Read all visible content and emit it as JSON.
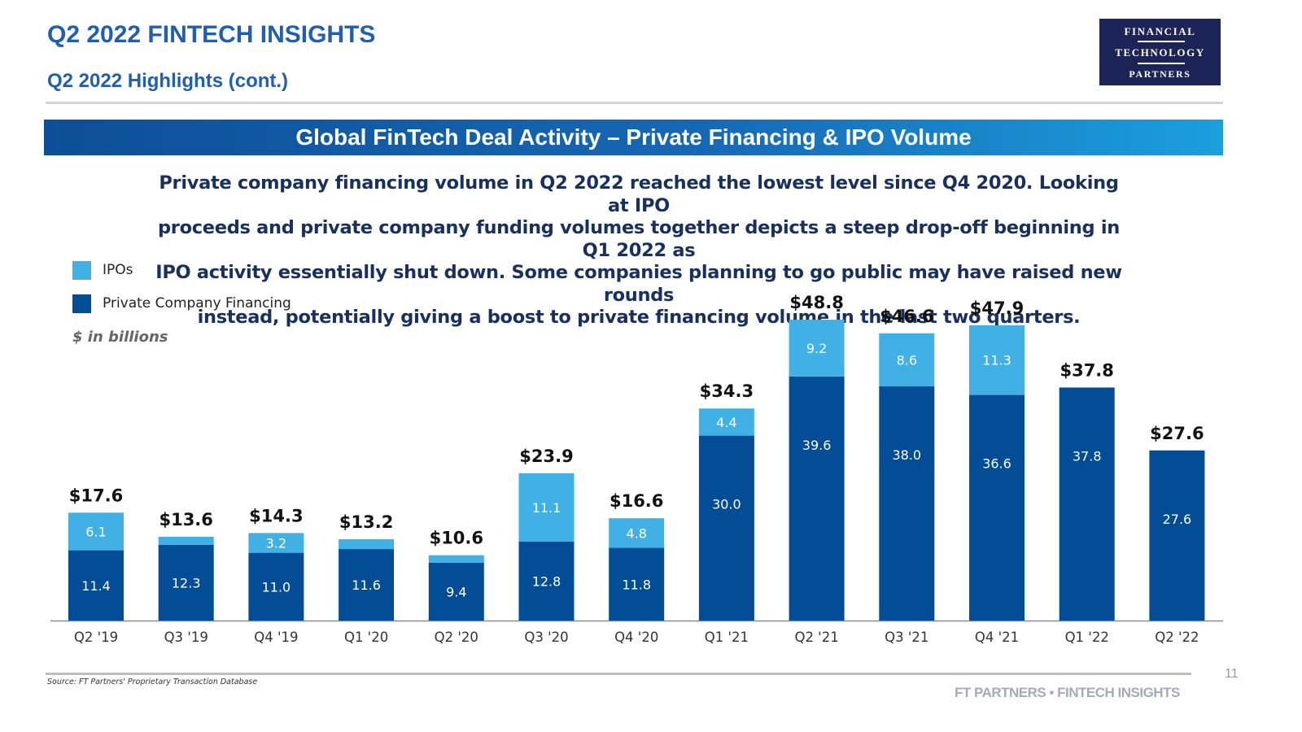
{
  "header": {
    "title": "Q2 2022 FINTECH INSIGHTS",
    "subtitle": "Q2 2022 Highlights (cont.)"
  },
  "logo": {
    "line1": "FINANCIAL",
    "line2": "TECHNOLOGY",
    "line3": "PARTNERS",
    "bg_color": "#1c2356"
  },
  "banner": {
    "text": "Global FinTech Deal Activity – Private Financing & IPO Volume"
  },
  "description": {
    "lines": [
      "Private company financing volume in Q2 2022 reached the lowest level since Q4 2020. Looking at IPO",
      "proceeds and private company funding volumes together depicts a steep drop-off beginning in Q1 2022 as",
      "IPO activity essentially shut down. Some companies planning to go public may have raised new rounds",
      "instead, potentially giving a boost to private financing volume in the last two quarters."
    ]
  },
  "units_note": "$ in billions",
  "chart_data": {
    "type": "bar",
    "stacked": true,
    "title": "Global FinTech Deal Activity – Private Financing & IPO Volume",
    "xlabel": "",
    "ylabel": "$ in billions",
    "ylim": [
      0,
      50
    ],
    "grid": false,
    "legend_position": "top-left",
    "categories": [
      "Q2 '19",
      "Q3 '19",
      "Q4 '19",
      "Q1 '20",
      "Q2 '20",
      "Q3 '20",
      "Q4 '20",
      "Q1 '21",
      "Q2 '21",
      "Q3 '21",
      "Q4 '21",
      "Q1 '22",
      "Q2 '22"
    ],
    "series": [
      {
        "name": "Private Company Financing",
        "color": "#034c96",
        "values": [
          11.4,
          12.3,
          11.0,
          11.6,
          9.4,
          12.8,
          11.8,
          30.0,
          39.6,
          38.0,
          36.6,
          37.8,
          27.6
        ],
        "labels": [
          "11.4",
          "12.3",
          "11.0",
          "11.6",
          "9.4",
          "12.8",
          "11.8",
          "30.0",
          "39.6",
          "38.0",
          "36.6",
          "37.8",
          "27.6"
        ]
      },
      {
        "name": "IPOs",
        "color": "#41b1e5",
        "values": [
          6.1,
          1.3,
          3.2,
          1.6,
          1.2,
          11.1,
          4.8,
          4.4,
          9.2,
          8.6,
          11.3,
          0.0,
          0.0
        ],
        "labels": [
          "6.1",
          "",
          "3.2",
          "",
          "",
          "11.1",
          "4.8",
          "4.4",
          "9.2",
          "8.6",
          "11.3",
          "",
          ""
        ]
      }
    ],
    "totals": [
      "$17.6",
      "$13.6",
      "$14.3",
      "$13.2",
      "$10.6",
      "$23.9",
      "$16.6",
      "$34.3",
      "$48.8",
      "$46.6",
      "$47.9",
      "$37.8",
      "$27.6"
    ],
    "legend": [
      {
        "name": "IPOs",
        "color": "#41b1e5"
      },
      {
        "name": "Private Company Financing",
        "color": "#034c96"
      }
    ]
  },
  "footer": {
    "source": "Source: FT Partners' Proprietary Transaction Database",
    "brand": "FT PARTNERS • FINTECH INSIGHTS",
    "page_number": "11"
  }
}
